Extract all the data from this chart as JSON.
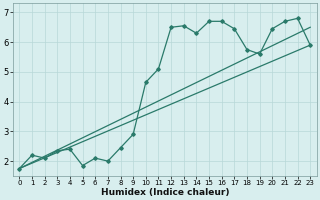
{
  "xlabel": "Humidex (Indice chaleur)",
  "background_color": "#d8eeee",
  "grid_color": "#b8d8d8",
  "line_color": "#2a7a6a",
  "xlim": [
    -0.5,
    23.5
  ],
  "ylim": [
    1.5,
    7.3
  ],
  "xticks": [
    0,
    1,
    2,
    3,
    4,
    5,
    6,
    7,
    8,
    9,
    10,
    11,
    12,
    13,
    14,
    15,
    16,
    17,
    18,
    19,
    20,
    21,
    22,
    23
  ],
  "yticks": [
    2,
    3,
    4,
    5,
    6,
    7
  ],
  "line1_x": [
    0,
    1,
    2,
    3,
    4,
    5,
    6,
    7,
    8,
    9,
    10,
    11,
    12,
    13,
    14,
    15,
    16,
    17,
    18,
    19,
    20,
    21,
    22,
    23
  ],
  "line1_y": [
    1.75,
    2.2,
    2.1,
    2.35,
    2.4,
    1.85,
    2.1,
    2.0,
    2.45,
    2.9,
    4.65,
    5.1,
    6.5,
    6.55,
    6.3,
    6.7,
    6.7,
    6.45,
    5.75,
    5.6,
    6.45,
    6.7,
    6.8,
    5.9
  ],
  "line2_x": [
    0,
    23
  ],
  "line2_y": [
    1.75,
    6.5
  ],
  "line3_x": [
    0,
    23
  ],
  "line3_y": [
    1.75,
    5.9
  ]
}
